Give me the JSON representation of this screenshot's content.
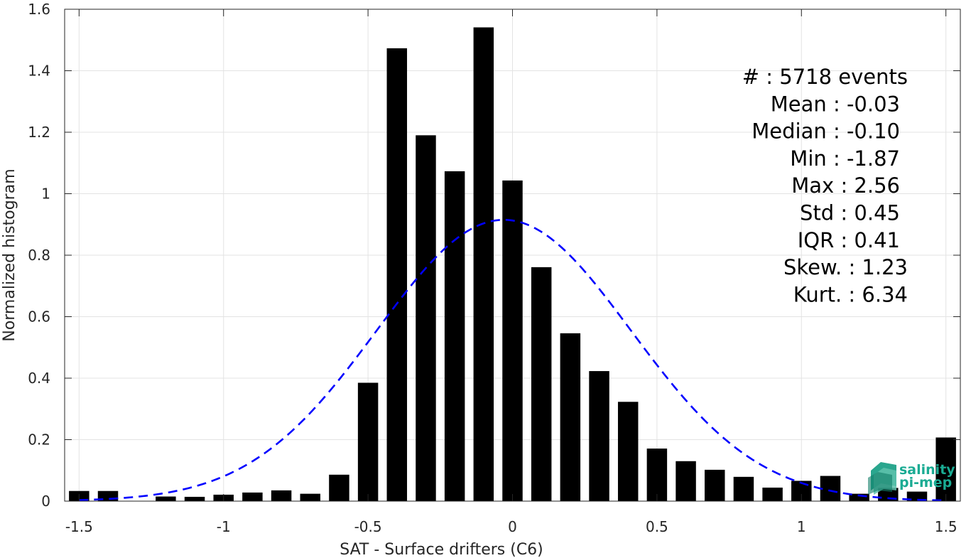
{
  "chart_data": {
    "type": "bar",
    "xlabel": "SAT - Surface drifters (C6)",
    "ylabel": "Normalized histogram",
    "xlim": [
      -1.55,
      1.55
    ],
    "ylim": [
      0,
      1.6
    ],
    "xticks": [
      -1.5,
      -1,
      -0.5,
      0,
      0.5,
      1,
      1.5
    ],
    "xtick_labels": [
      "-1.5",
      "-1",
      "-0.5",
      "0",
      "0.5",
      "1",
      "1.5"
    ],
    "yticks": [
      0,
      0.2,
      0.4,
      0.6,
      0.8,
      1,
      1.2,
      1.4,
      1.6
    ],
    "ytick_labels": [
      "0",
      "0.2",
      "0.4",
      "0.6",
      "0.8",
      "1",
      "1.2",
      "1.4",
      "1.6"
    ],
    "grid": true,
    "bar_color": "#000000",
    "bin_width": 0.1,
    "bars": {
      "x": [
        -1.5,
        -1.4,
        -1.3,
        -1.2,
        -1.1,
        -1.0,
        -0.9,
        -0.8,
        -0.7,
        -0.6,
        -0.5,
        -0.4,
        -0.3,
        -0.2,
        -0.1,
        0.0,
        0.1,
        0.2,
        0.3,
        0.4,
        0.5,
        0.6,
        0.7,
        0.8,
        0.9,
        1.0,
        1.1,
        1.2,
        1.3,
        1.4,
        1.5
      ],
      "values": [
        0.033,
        0.033,
        0.0,
        0.015,
        0.014,
        0.021,
        0.028,
        0.035,
        0.024,
        0.086,
        0.385,
        1.473,
        1.19,
        1.073,
        1.541,
        1.043,
        0.761,
        0.546,
        0.423,
        0.323,
        0.171,
        0.13,
        0.102,
        0.079,
        0.044,
        0.066,
        0.082,
        0.024,
        0.043,
        0.031,
        0.207
      ]
    },
    "fit": {
      "style": "dashed",
      "color": "#0000ff",
      "mean": -0.03,
      "std": 0.44,
      "peak": 0.915,
      "x_range": [
        -1.5,
        1.5
      ]
    },
    "stats": {
      "lines": [
        "#  : 5718 events",
        "Mean : -0.03",
        "Median : -0.10",
        "Min : -1.87",
        "Max : 2.56",
        "Std : 0.45",
        "IQR : 0.41",
        "Skew. : 1.23",
        "Kurt. : 6.34"
      ]
    },
    "logo": {
      "line1": "salinity",
      "line2": "pi-mep",
      "color": "#1aab93"
    }
  }
}
